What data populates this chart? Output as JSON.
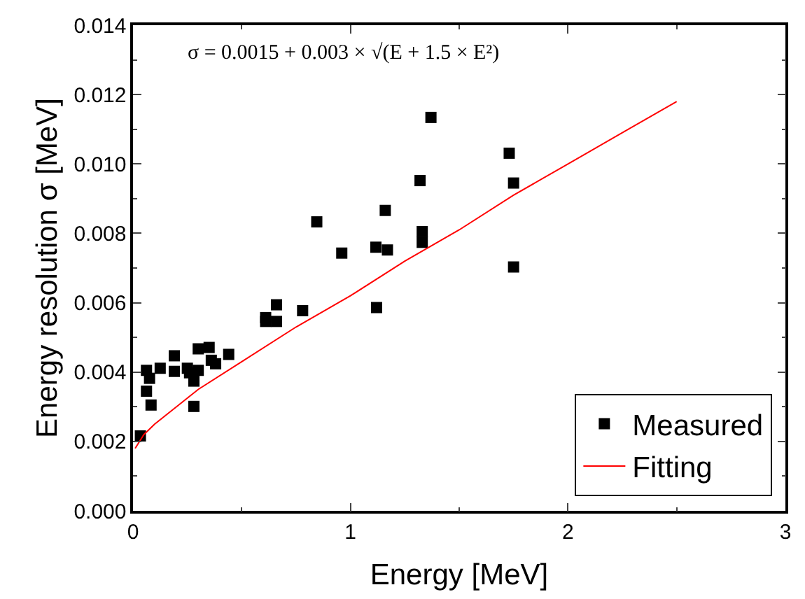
{
  "chart_data": {
    "type": "scatter",
    "xlabel": "Energy [MeV]",
    "ylabel": "Energy resolution σ [MeV]",
    "xlim": [
      0,
      3
    ],
    "xticks": [
      0,
      1,
      2,
      3
    ],
    "ylim": [
      0,
      0.014
    ],
    "yticks": [
      {
        "value": 0,
        "label": "0.000"
      },
      {
        "value": 0.002,
        "label": "0.002"
      },
      {
        "value": 0.004,
        "label": "0.004"
      },
      {
        "value": 0.006,
        "label": "0.006"
      },
      {
        "value": 0.008,
        "label": "0.008"
      },
      {
        "value": 0.01,
        "label": "0.010"
      },
      {
        "value": 0.012,
        "label": "0.012"
      },
      {
        "value": 0.014,
        "label": "0.014"
      }
    ],
    "legend": "bottom right",
    "annotations": [
      "σ = 0.0015 + 0.003 × √(E + 1.5 × E²)"
    ],
    "series": [
      {
        "name": "Measured",
        "marker": "square",
        "color": "#000000",
        "x": [
          0.034,
          0.062,
          0.076,
          0.062,
          0.083,
          0.125,
          0.19,
          0.19,
          0.25,
          0.26,
          0.28,
          0.28,
          0.3,
          0.3,
          0.35,
          0.36,
          0.38,
          0.44,
          0.61,
          0.61,
          0.66,
          0.66,
          0.78,
          0.845,
          0.96,
          1.117,
          1.12,
          1.16,
          1.17,
          1.32,
          1.33,
          1.33,
          1.37,
          1.73,
          1.75,
          1.75
        ],
        "values": [
          0.00216,
          0.00405,
          0.00382,
          0.00345,
          0.00305,
          0.00411,
          0.00447,
          0.00402,
          0.00411,
          0.00398,
          0.00374,
          0.00301,
          0.00405,
          0.00467,
          0.00471,
          0.00434,
          0.00424,
          0.00451,
          0.00546,
          0.00557,
          0.00594,
          0.00546,
          0.00577,
          0.00833,
          0.00743,
          0.0076,
          0.00586,
          0.00866,
          0.00752,
          0.00952,
          0.00805,
          0.00774,
          0.01134,
          0.01031,
          0.00945,
          0.00703
        ]
      },
      {
        "name": "Fitting",
        "type": "line",
        "marker": "none",
        "line_style": "solid",
        "color": "#ff0000",
        "x": [
          0.01,
          0.05,
          0.1,
          0.2,
          0.3,
          0.5,
          0.75,
          1,
          1.25,
          1.5,
          1.75,
          2,
          2.25,
          2.5
        ],
        "values": [
          0.0018,
          0.0022,
          0.0025,
          0.003,
          0.0035,
          0.0043,
          0.0053,
          0.0062,
          0.0072,
          0.0081,
          0.0091,
          0.01,
          0.0109,
          0.0118
        ]
      }
    ]
  }
}
